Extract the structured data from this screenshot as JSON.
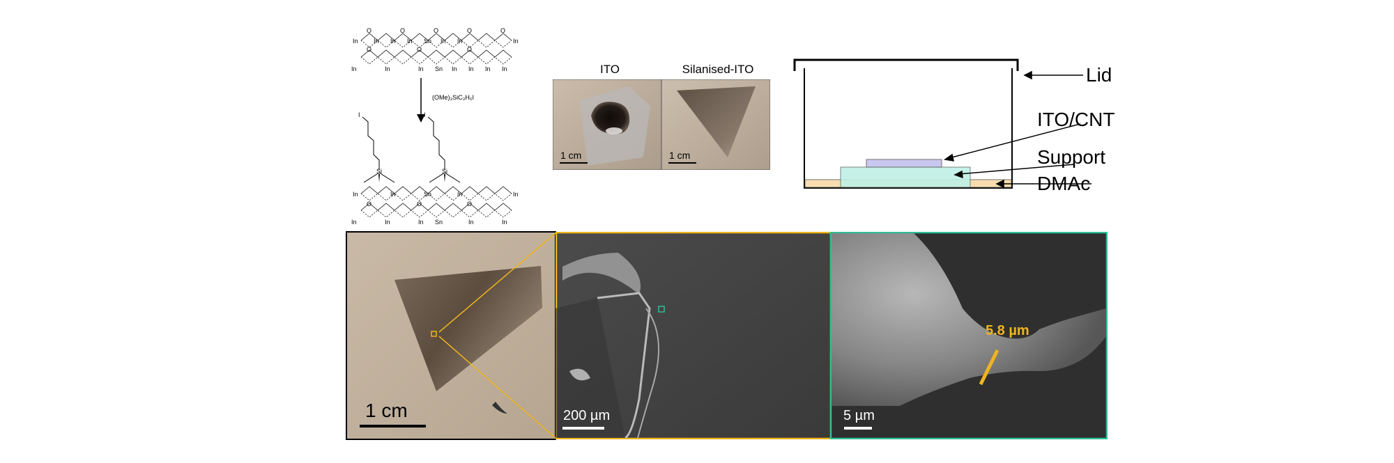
{
  "chemistry": {
    "reagent": "(OMe)₃SiC₃H₆I",
    "top_row_labels": [
      "In",
      "In",
      "In",
      "In",
      "Sn",
      "In",
      "In",
      "In"
    ],
    "bottom_row_labels": [
      "In",
      "In",
      "In",
      "Sn",
      "In",
      "In",
      "In",
      "In"
    ],
    "oxygen_label": "O",
    "silicon_label": "Si",
    "iodine_label": "I",
    "indium_label": "In",
    "tin_label": "Sn"
  },
  "photos": {
    "ito_title": "ITO",
    "silanised_title": "Silanised-ITO",
    "scale_label": "1 cm"
  },
  "setup": {
    "lid_label": "Lid",
    "ito_cnt_label": "ITO/CNT",
    "support_label": "Support",
    "dmac_label": "DMAc",
    "colors": {
      "ito_cnt": "#c9c7ef",
      "support": "#bff0e6",
      "dmac": "#f7ddb0"
    }
  },
  "bottom": {
    "photo_scale": "1 cm",
    "sem1_scale": "200 µm",
    "sem2_scale": "5 µm",
    "measurement": "5.8 µm",
    "colors": {
      "orange": "#f0b41e",
      "teal": "#2cbf95"
    }
  }
}
